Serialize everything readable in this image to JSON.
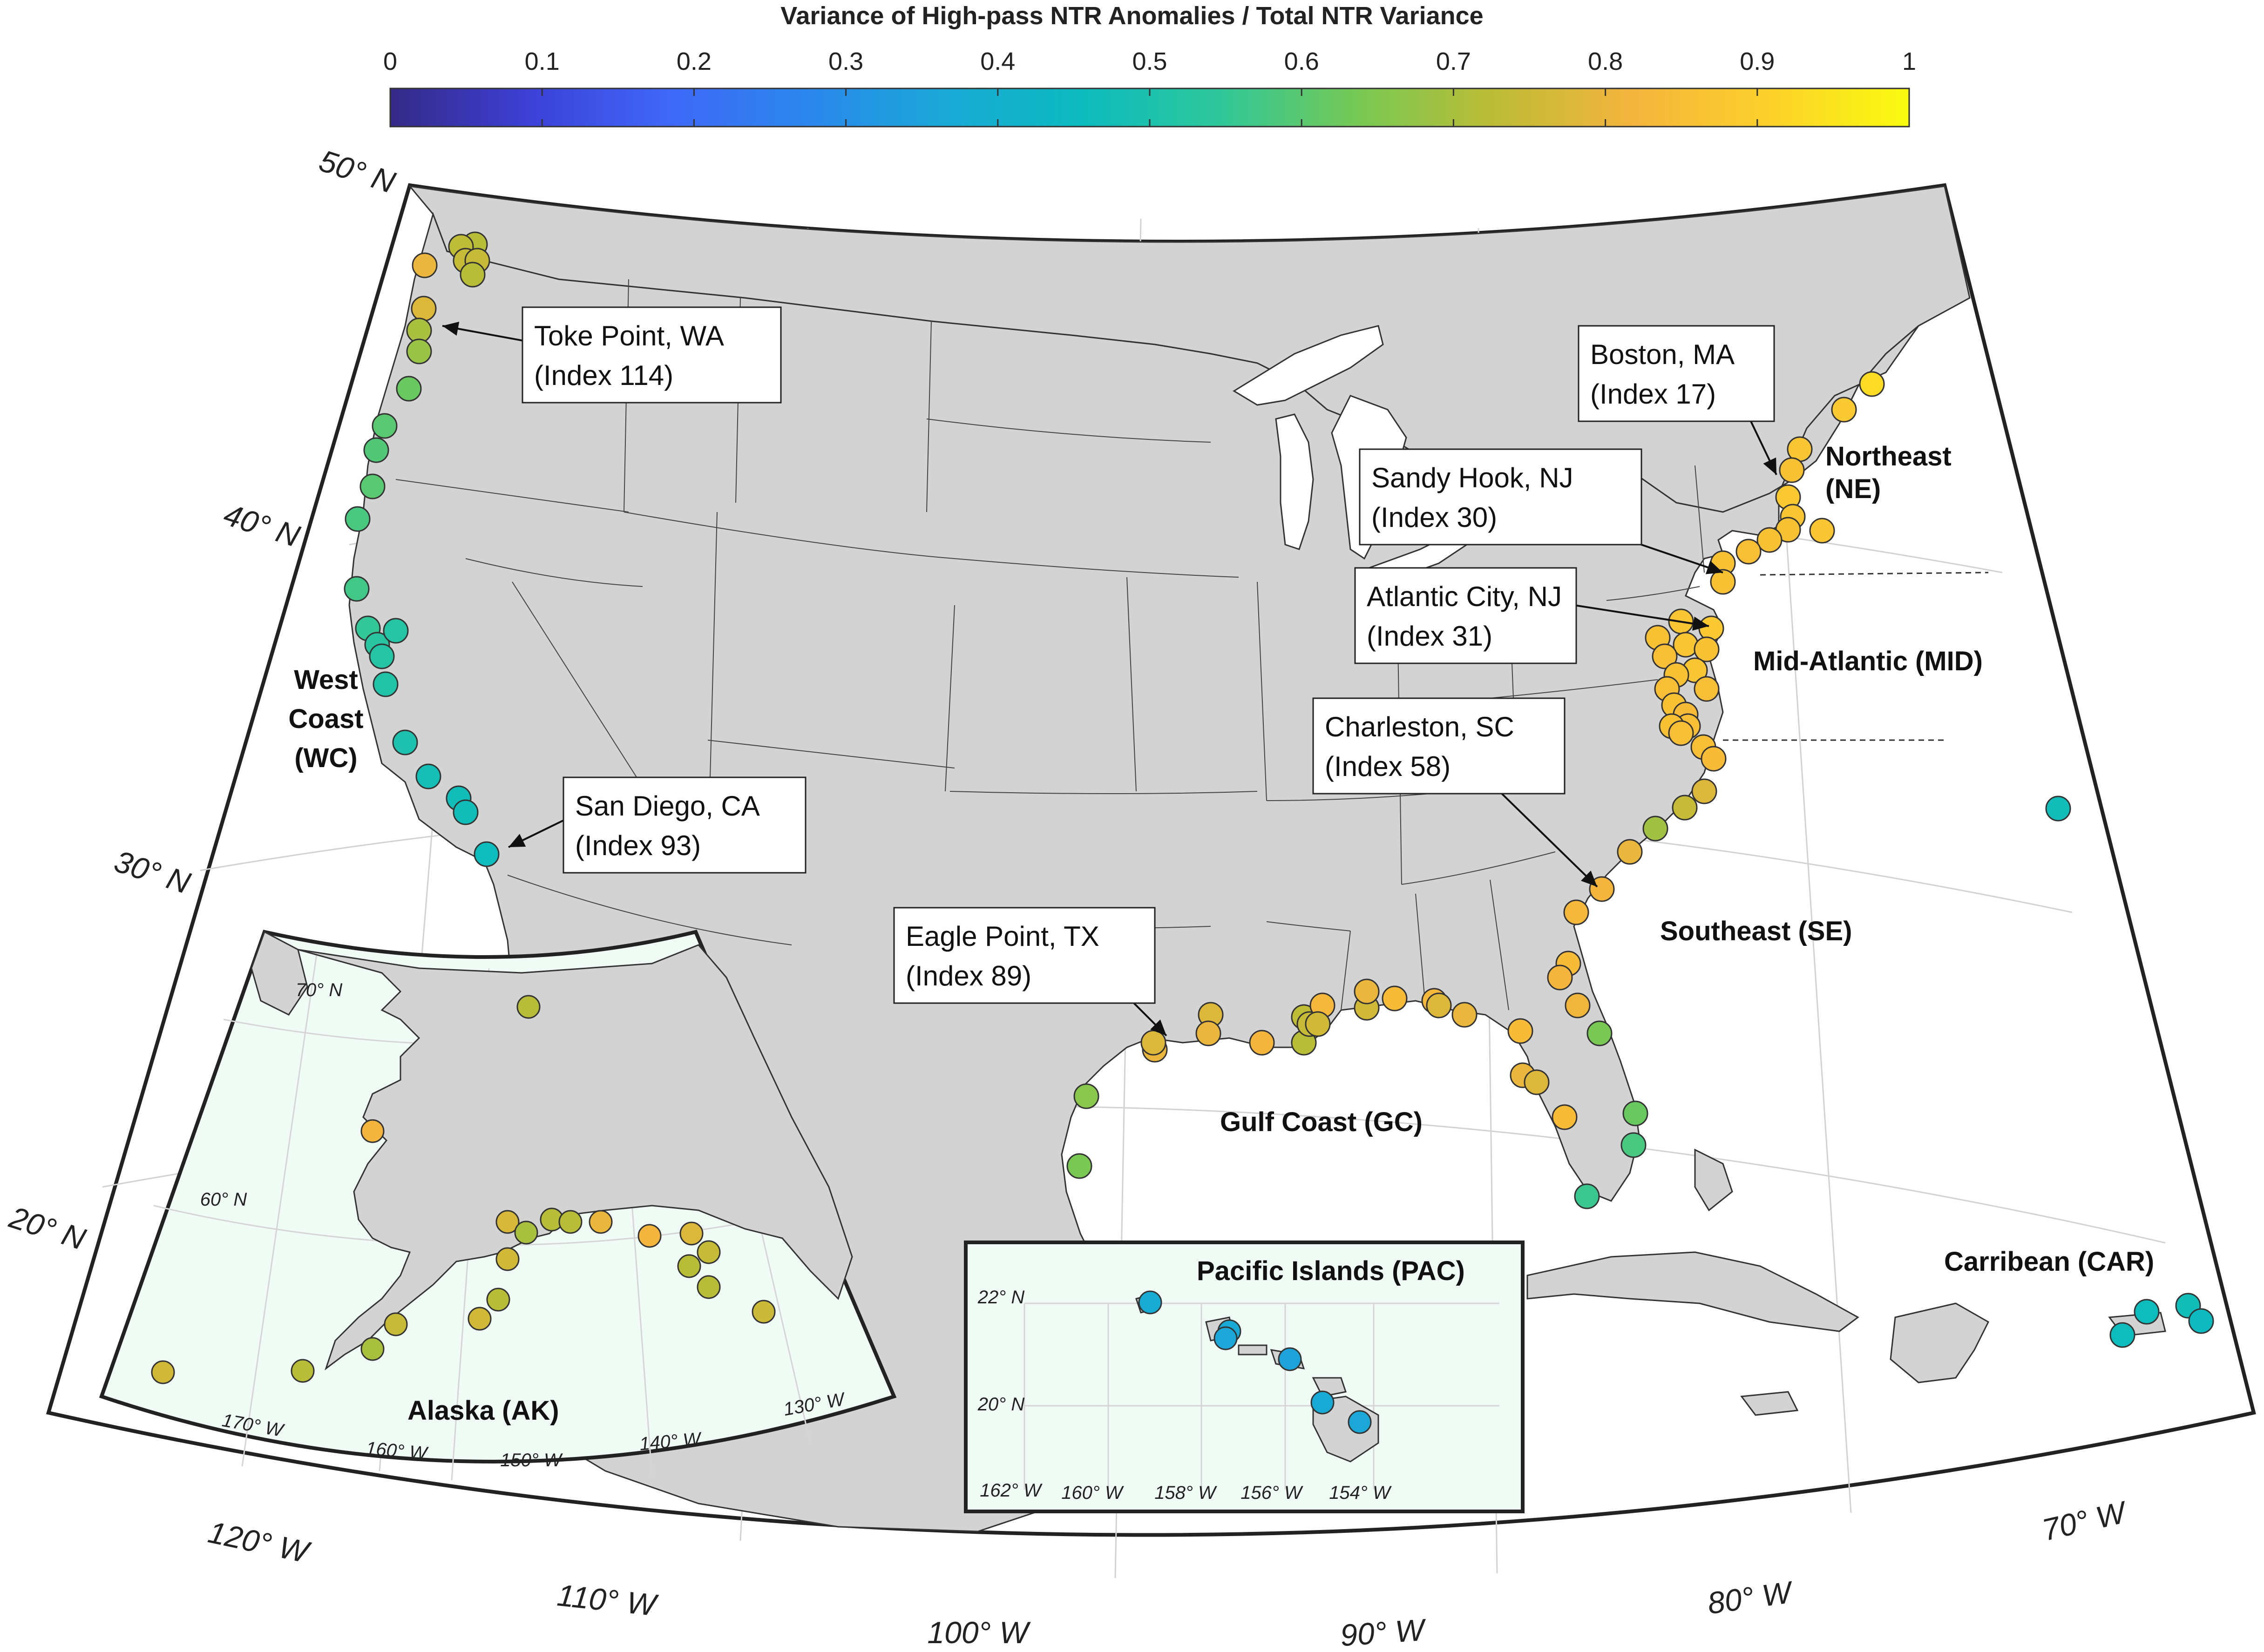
{
  "colorbar": {
    "title": "Variance of High-pass NTR Anomalies / Total NTR Variance",
    "ticks": [
      "0",
      "0.1",
      "0.2",
      "0.3",
      "0.4",
      "0.5",
      "0.6",
      "0.7",
      "0.8",
      "0.9",
      "1"
    ],
    "colormap": [
      "#352a87",
      "#3c40d6",
      "#3f67f8",
      "#2b86ee",
      "#1aa8d7",
      "#0bbbbf",
      "#2ec79a",
      "#76c954",
      "#bdbc35",
      "#f5b43c",
      "#fcd12a",
      "#f9fb0e"
    ]
  },
  "main_map": {
    "lat_labels": [
      "50° N",
      "40° N",
      "30° N",
      "20° N"
    ],
    "lon_labels": [
      "120° W",
      "110° W",
      "100° W",
      "90° W",
      "80° W",
      "70° W"
    ]
  },
  "regions": [
    {
      "id": "wc",
      "lines": [
        "West",
        "Coast",
        "(WC)"
      ]
    },
    {
      "id": "ne",
      "lines": [
        "Northeast",
        "(NE)"
      ]
    },
    {
      "id": "mid",
      "lines": [
        "Mid-Atlantic (MID)"
      ]
    },
    {
      "id": "se",
      "lines": [
        "Southeast (SE)"
      ]
    },
    {
      "id": "gc",
      "lines": [
        "Gulf Coast (GC)"
      ]
    },
    {
      "id": "car",
      "lines": [
        "Carribean (CAR)"
      ]
    },
    {
      "id": "ak",
      "lines": [
        "Alaska (AK)"
      ]
    },
    {
      "id": "pac",
      "lines": [
        "Pacific Islands (PAC)"
      ]
    }
  ],
  "callouts": [
    {
      "id": "toke",
      "name": "Toke Point, WA",
      "index": "(Index 114)"
    },
    {
      "id": "boston",
      "name": "Boston, MA",
      "index": "(Index 17)"
    },
    {
      "id": "sandy",
      "name": "Sandy Hook, NJ",
      "index": "(Index 30)"
    },
    {
      "id": "atlantic",
      "name": "Atlantic City, NJ",
      "index": "(Index 31)"
    },
    {
      "id": "charleston",
      "name": "Charleston, SC",
      "index": "(Index 58)"
    },
    {
      "id": "sandiego",
      "name": "San Diego, CA",
      "index": "(Index 93)"
    },
    {
      "id": "eagle",
      "name": "Eagle Point, TX",
      "index": "(Index 89)"
    }
  ],
  "alaska_inset": {
    "lat_labels": [
      "70° N",
      "60° N"
    ],
    "lon_labels": [
      "170° W",
      "160° W",
      "150° W",
      "140° W",
      "130° W"
    ]
  },
  "pacific_inset": {
    "lat_labels": [
      "22° N",
      "20° N"
    ],
    "lon_labels": [
      "162° W",
      "160° W",
      "158° W",
      "156° W",
      "154° W"
    ]
  },
  "chart_data": {
    "type": "scatter",
    "title": "Variance of High-pass NTR Anomalies / Total NTR Variance",
    "color_scale": [
      0,
      1
    ],
    "series": [
      {
        "name": "West Coast (WC)",
        "values": [
          0.72,
          0.73,
          0.74,
          0.74,
          0.72,
          0.8,
          0.78,
          0.7,
          0.68,
          0.62,
          0.6,
          0.59,
          0.6,
          0.58,
          0.57,
          0.55,
          0.53,
          0.52,
          0.52,
          0.51,
          0.5,
          0.48,
          0.47,
          0.47,
          0.46
        ]
      },
      {
        "name": "Northeast (NE)",
        "values": [
          0.93,
          0.88,
          0.87,
          0.86,
          0.88,
          0.87,
          0.87,
          0.86,
          0.86,
          0.85
        ]
      },
      {
        "name": "Mid-Atlantic (MID)",
        "values": [
          0.86,
          0.86,
          0.87,
          0.88,
          0.87,
          0.86,
          0.85,
          0.86,
          0.87,
          0.86,
          0.85,
          0.85,
          0.86,
          0.84,
          0.85,
          0.86,
          0.85,
          0.85,
          0.84
        ]
      },
      {
        "name": "Southeast (SE)",
        "values": [
          0.78,
          0.74,
          0.69,
          0.8,
          0.82,
          0.83,
          0.84,
          0.82,
          0.81,
          0.64,
          0.62,
          0.58,
          0.56
        ]
      },
      {
        "name": "Gulf Coast (GC)",
        "values": [
          0.64,
          0.66,
          0.8,
          0.78,
          0.78,
          0.8,
          0.82,
          0.73,
          0.72,
          0.74,
          0.83,
          0.76,
          0.76,
          0.8,
          0.84,
          0.83,
          0.78,
          0.8,
          0.84,
          0.8,
          0.78,
          0.84
        ]
      },
      {
        "name": "Carribean (CAR)",
        "values": [
          0.47,
          0.46,
          0.47,
          0.45,
          0.46
        ]
      },
      {
        "name": "Alaska (AK)",
        "values": [
          0.72,
          0.82,
          0.77,
          0.72,
          0.72,
          0.8,
          0.82,
          0.78,
          0.74,
          0.72,
          0.72,
          0.75,
          0.7,
          0.76,
          0.72,
          0.76,
          0.74,
          0.7,
          0.72,
          0.76
        ]
      },
      {
        "name": "Pacific Islands (PAC)",
        "values": [
          0.38,
          0.37,
          0.36,
          0.35,
          0.37,
          0.36
        ]
      }
    ]
  }
}
